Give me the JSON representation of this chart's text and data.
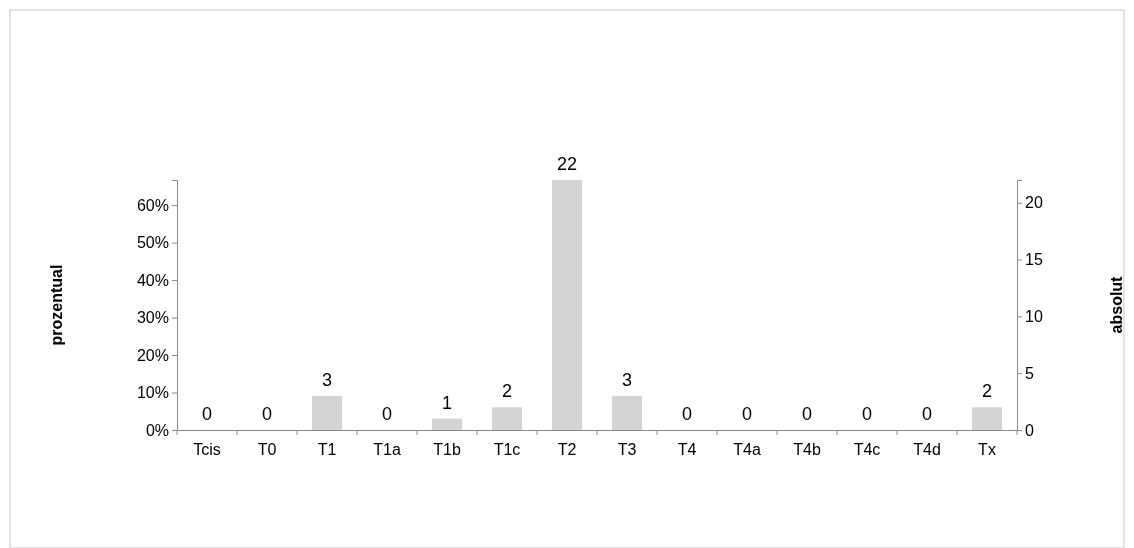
{
  "chart_data": {
    "type": "bar",
    "ylabel": "prozentual",
    "y2label": "absolut",
    "categories": [
      "Tcis",
      "T0",
      "T1",
      "T1a",
      "T1b",
      "T1c",
      "T2",
      "T3",
      "T4",
      "T4a",
      "T4b",
      "T4c",
      "T4d",
      "Tx"
    ],
    "series": [
      {
        "color": "#d4d4d4",
        "axis": "y2",
        "values": [
          0,
          0,
          3,
          0,
          1,
          2,
          22,
          3,
          0,
          0,
          0,
          0,
          0,
          2
        ]
      }
    ],
    "ylim": [
      0,
      66.7
    ],
    "yticks": [
      {
        "value": 0,
        "label": "0%"
      },
      {
        "value": 10,
        "label": "10%"
      },
      {
        "value": 20,
        "label": "20%"
      },
      {
        "value": 30,
        "label": "30%"
      },
      {
        "value": 40,
        "label": "40%"
      },
      {
        "value": 50,
        "label": "50%"
      },
      {
        "value": 60,
        "label": "60%"
      }
    ],
    "y2lim": [
      0,
      22
    ],
    "y2ticks": [
      0,
      5,
      10,
      15,
      20
    ],
    "data_labels": true,
    "grid": false
  }
}
